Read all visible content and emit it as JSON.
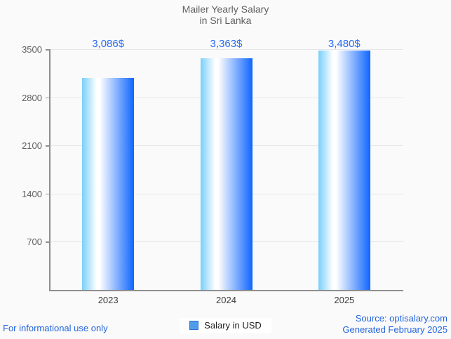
{
  "window": {
    "background": "#fafafa"
  },
  "title": {
    "line1": "Mailer Yearly Salary",
    "line2": "in Sri Lanka"
  },
  "chart_data": {
    "type": "bar",
    "title": "Mailer Yearly Salary in Sri Lanka",
    "categories": [
      "2023",
      "2024",
      "2025"
    ],
    "series": [
      {
        "name": "Salary in USD",
        "values": [
          3086,
          3363,
          3480
        ],
        "value_labels": [
          "3,086$",
          "3,363$",
          "3,480$"
        ]
      }
    ],
    "xlabel": "",
    "ylabel": "",
    "ylim": [
      0,
      3500
    ],
    "yticks": [
      700,
      1400,
      2100,
      2800,
      3500
    ],
    "ytick_labels": [
      "700",
      "1400",
      "2100",
      "2800",
      "3500"
    ],
    "grid": true,
    "legend_position": "bottom"
  },
  "legend": {
    "label": "Salary in USD"
  },
  "footer": {
    "disclaimer": "For informational use only",
    "source": "Source: optisalary.com",
    "generated": "Generated February 2025"
  },
  "colors": {
    "background": "#fafafa",
    "bar_gradient_left": "#79cffb",
    "bar_gradient_mid": "#ffffff",
    "bar_gradient_right": "#0f66fe",
    "value_label": "#2a6cf2",
    "footer_text": "#2264dd",
    "title_text": "#616161",
    "axis_line": "#8f8f8f",
    "grid_line": "#e6e6e6",
    "ytick_text": "#5f5f5f",
    "xtick_text": "#3c3c3c",
    "legend_marker_fill": "#4f9ce9",
    "legend_marker_border": "#2e6ed0"
  }
}
